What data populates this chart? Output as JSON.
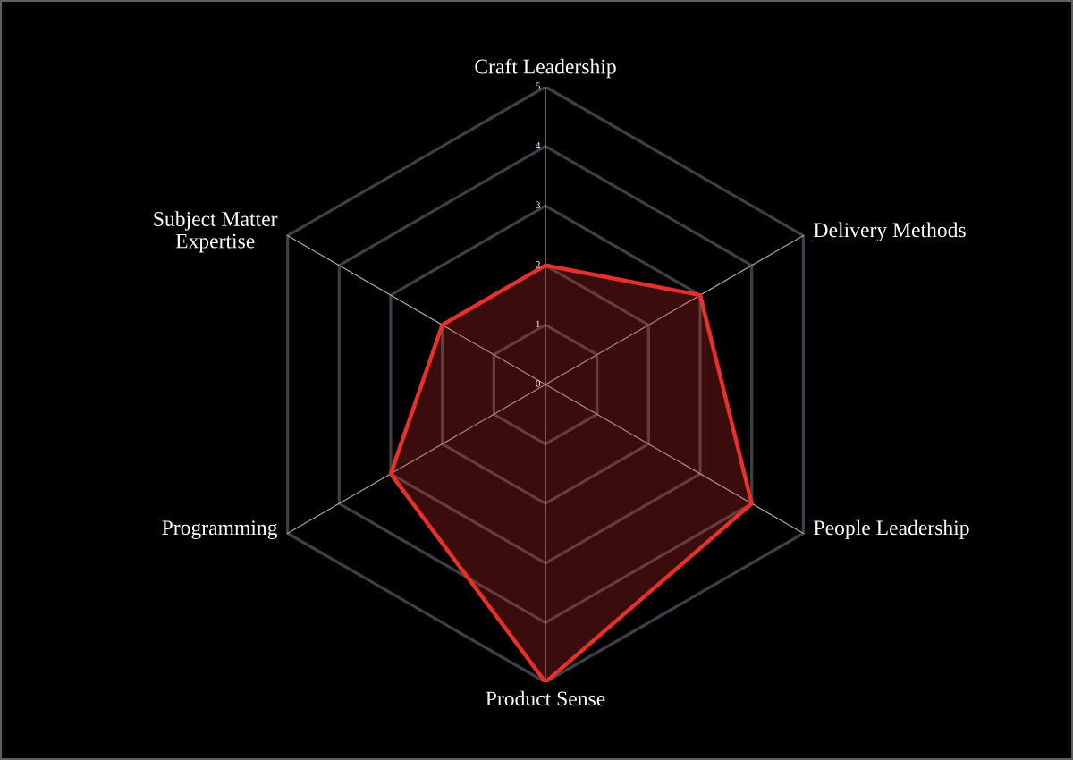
{
  "chart_data": {
    "type": "radar",
    "categories": [
      "Craft Leadership",
      "Delivery Methods",
      "People Leadership",
      "Product Sense",
      "Programming",
      "Subject Matter\nExpertise"
    ],
    "series": [
      {
        "color": "#e8302a",
        "values": [
          2,
          3,
          4,
          5,
          3,
          2
        ]
      }
    ],
    "ylim": [
      0,
      5
    ],
    "yticks": [
      0,
      1,
      2,
      3,
      4,
      5
    ],
    "grid": true
  }
}
